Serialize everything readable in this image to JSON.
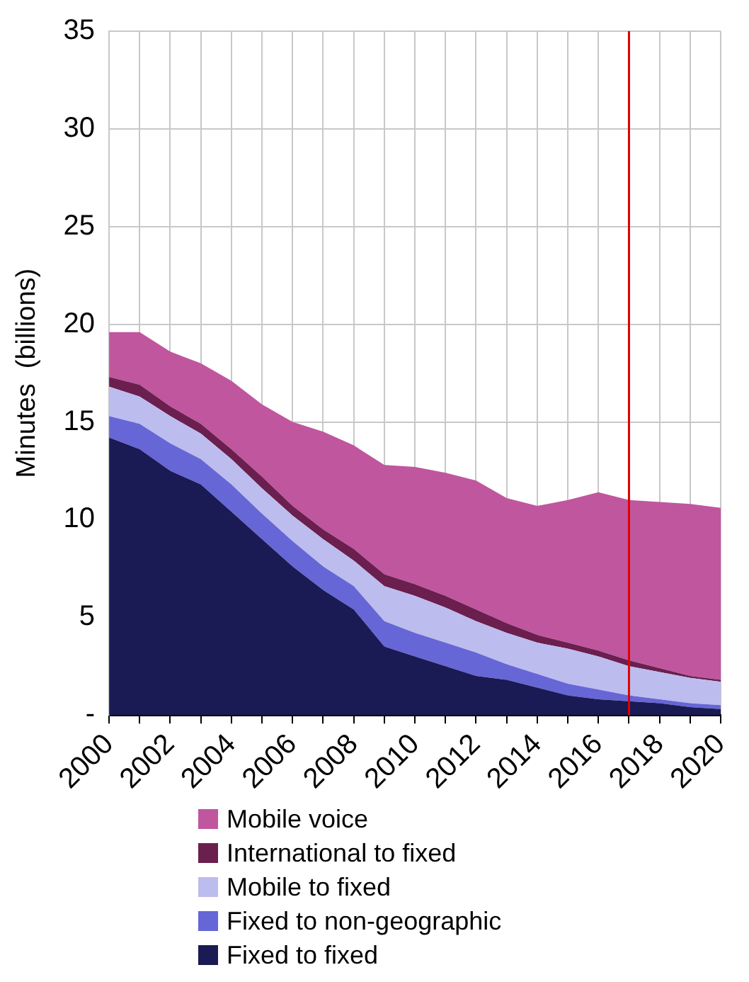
{
  "chart_data": {
    "type": "area",
    "stacked": true,
    "ylabel": "Minutes  (billions)",
    "x": [
      2000,
      2001,
      2002,
      2003,
      2004,
      2005,
      2006,
      2007,
      2008,
      2009,
      2010,
      2011,
      2012,
      2013,
      2014,
      2015,
      2016,
      2017,
      2018,
      2019,
      2020
    ],
    "xlim": [
      2000,
      2020
    ],
    "xticks": [
      2000,
      {
        "value": 2001,
        "label": null
      },
      2002,
      {
        "value": 2003,
        "label": null
      },
      2004,
      {
        "value": 2005,
        "label": null
      },
      2006,
      {
        "value": 2007,
        "label": null
      },
      2008,
      {
        "value": 2009,
        "label": null
      },
      2010,
      {
        "value": 2011,
        "label": null
      },
      2012,
      {
        "value": 2013,
        "label": null
      },
      2014,
      {
        "value": 2015,
        "label": null
      },
      2016,
      {
        "value": 2017,
        "label": null
      },
      2018,
      {
        "value": 2019,
        "label": null
      },
      2020
    ],
    "ylim": [
      0,
      35
    ],
    "yticks": [
      {
        "value": 0,
        "label": "-"
      },
      5,
      10,
      15,
      20,
      25,
      30,
      35
    ],
    "grid": true,
    "legend": "bottom",
    "ref_lines": [
      {
        "axis": "x",
        "value": 2017,
        "color": "#e00000"
      }
    ],
    "series": [
      {
        "name": "Fixed to fixed",
        "color": "#1a1a55",
        "values": [
          14.2,
          13.6,
          12.5,
          11.8,
          10.4,
          9.0,
          7.6,
          6.4,
          5.4,
          3.5,
          3.0,
          2.5,
          2.0,
          1.8,
          1.4,
          1.0,
          0.8,
          0.7,
          0.6,
          0.4,
          0.3
        ]
      },
      {
        "name": "Fixed to non-geographic",
        "color": "#6666d6",
        "values": [
          1.1,
          1.3,
          1.4,
          1.3,
          1.4,
          1.3,
          1.3,
          1.2,
          1.2,
          1.3,
          1.2,
          1.2,
          1.2,
          0.8,
          0.7,
          0.6,
          0.5,
          0.3,
          0.2,
          0.2,
          0.2
        ]
      },
      {
        "name": "Mobile to fixed",
        "color": "#bcbcee",
        "values": [
          1.5,
          1.4,
          1.4,
          1.3,
          1.3,
          1.3,
          1.3,
          1.4,
          1.3,
          1.8,
          1.9,
          1.8,
          1.6,
          1.6,
          1.6,
          1.8,
          1.7,
          1.5,
          1.4,
          1.3,
          1.2
        ]
      },
      {
        "name": "International to fixed",
        "color": "#6b1f4f",
        "values": [
          0.5,
          0.6,
          0.5,
          0.5,
          0.5,
          0.6,
          0.5,
          0.5,
          0.6,
          0.6,
          0.6,
          0.6,
          0.6,
          0.5,
          0.4,
          0.3,
          0.3,
          0.3,
          0.2,
          0.1,
          0.1
        ]
      },
      {
        "name": "Mobile voice",
        "color": "#c0569e",
        "values": [
          2.3,
          2.7,
          2.8,
          3.1,
          3.5,
          3.7,
          4.3,
          5.0,
          5.3,
          5.6,
          6.0,
          6.3,
          6.6,
          6.4,
          6.6,
          7.3,
          8.1,
          8.2,
          8.5,
          8.8,
          8.8
        ]
      }
    ]
  }
}
